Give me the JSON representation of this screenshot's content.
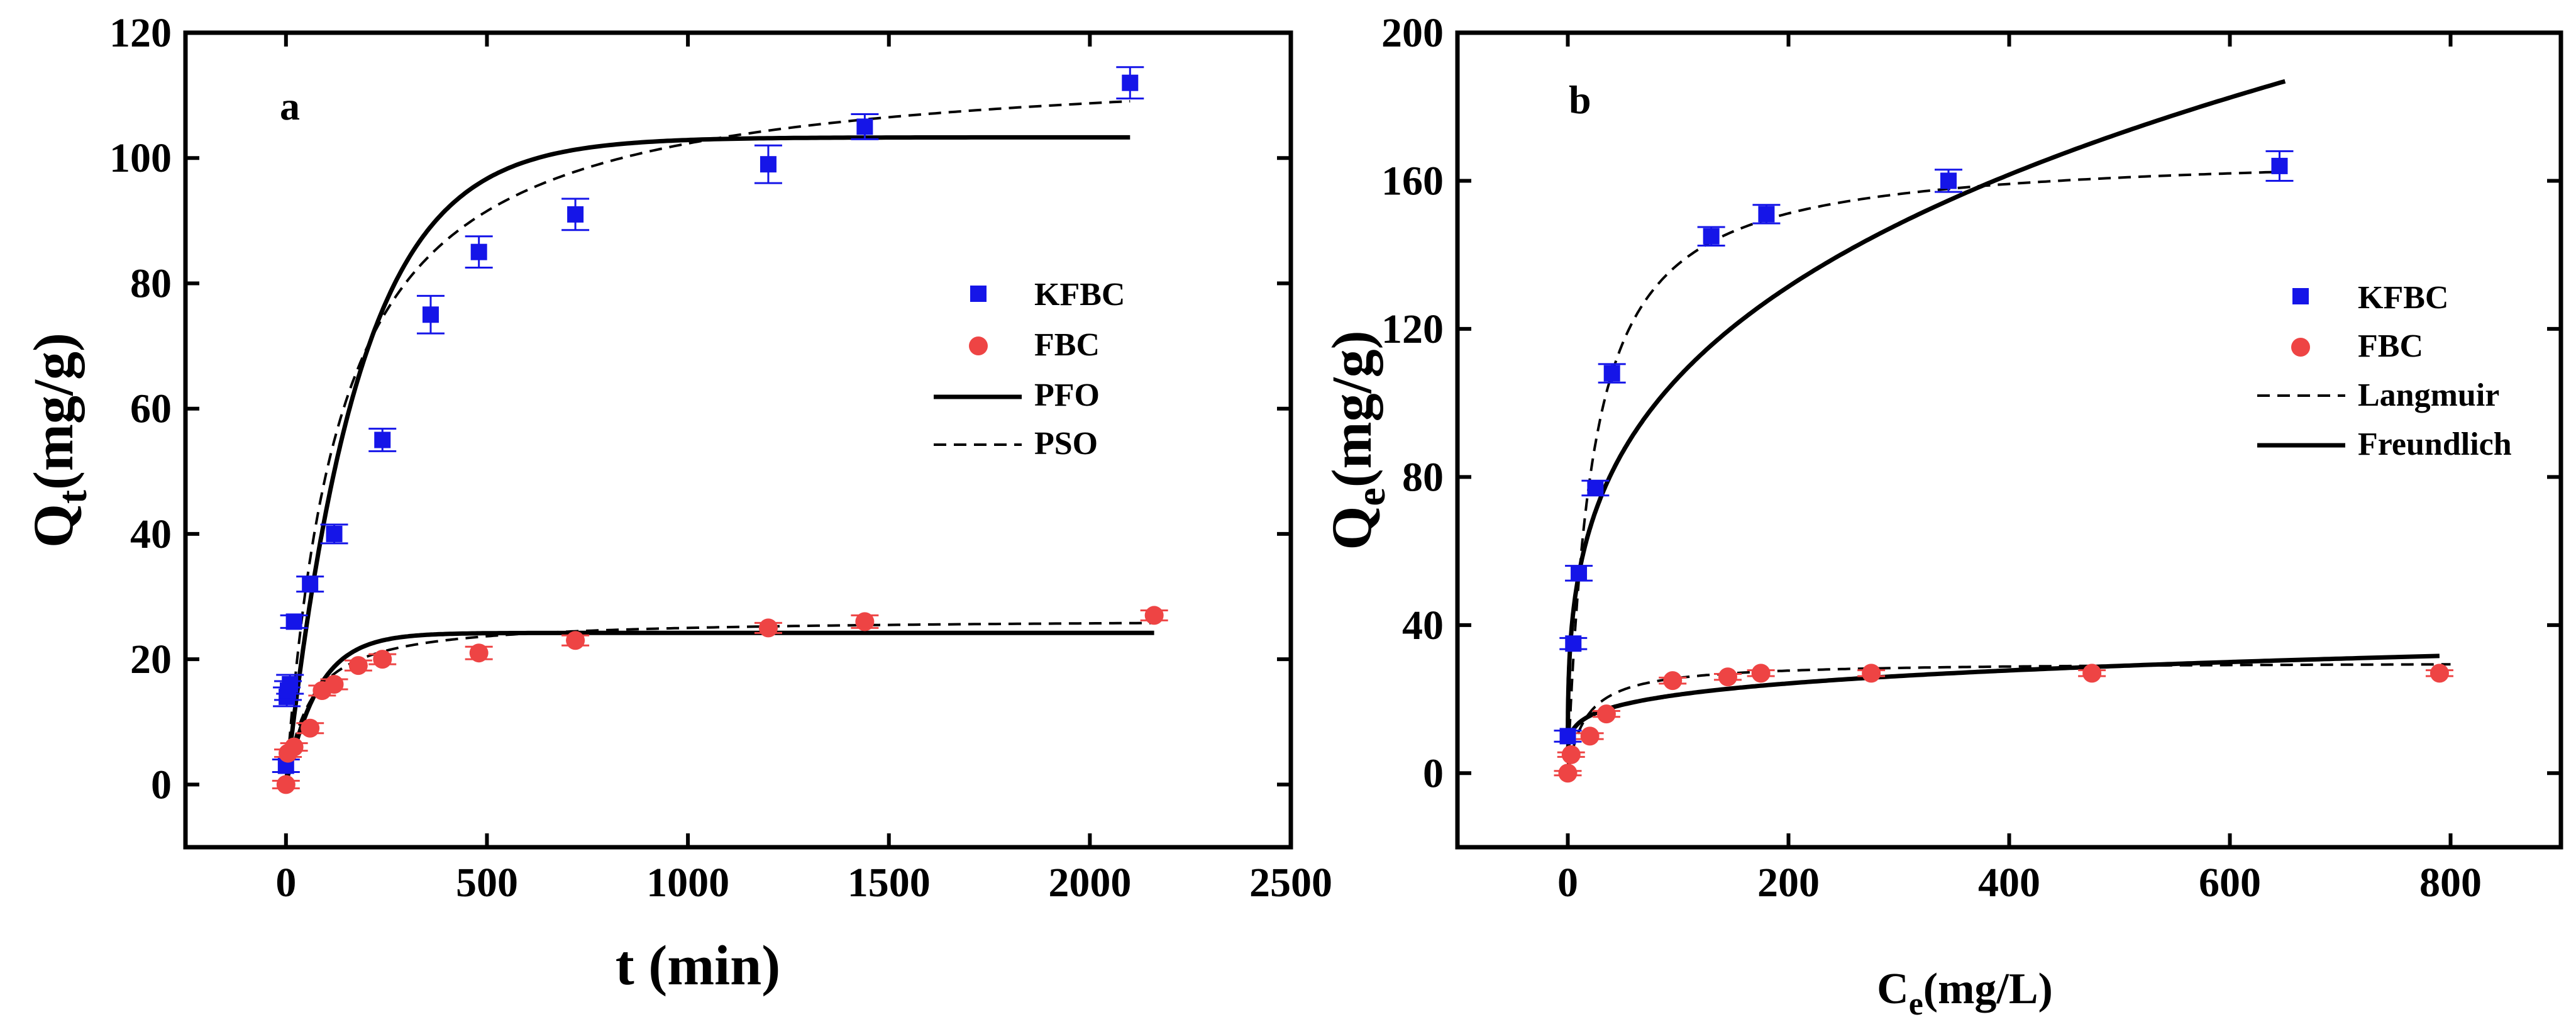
{
  "colors": {
    "kfbc": "#1515e8",
    "fbc": "#ee4444",
    "line": "#000000"
  },
  "chart_data": [
    {
      "type": "scatter",
      "panel_label": "a",
      "xlabel": "t (min)",
      "ylabel": {
        "main": "Q",
        "sub": "t",
        "rest": "(mg/g)"
      },
      "xlim": [
        -250,
        2500
      ],
      "ylim": [
        -10,
        120
      ],
      "xticks": [
        "0",
        "500",
        "1000",
        "1500",
        "2000",
        "2500"
      ],
      "yticks": [
        "0",
        "20",
        "40",
        "60",
        "80",
        "100",
        "120"
      ],
      "legend": {
        "position": "right-middle",
        "entries": [
          "KFBC",
          "FBC",
          "PFO",
          "PSO"
        ]
      },
      "series": [
        {
          "name": "KFBC",
          "marker": "square",
          "color": "#1515e8",
          "points": [
            {
              "x": 0,
              "y": 3,
              "err": 1.0
            },
            {
              "x": 2,
              "y": 14,
              "err": 1.5
            },
            {
              "x": 5,
              "y": 15,
              "err": 1.5
            },
            {
              "x": 10,
              "y": 16,
              "err": 1.5
            },
            {
              "x": 20,
              "y": 26,
              "err": 1.0
            },
            {
              "x": 60,
              "y": 32,
              "err": 1.2
            },
            {
              "x": 120,
              "y": 40,
              "err": 1.5
            },
            {
              "x": 240,
              "y": 55,
              "err": 1.8
            },
            {
              "x": 360,
              "y": 75,
              "err": 3.0
            },
            {
              "x": 480,
              "y": 85,
              "err": 2.5
            },
            {
              "x": 720,
              "y": 91,
              "err": 2.5
            },
            {
              "x": 1200,
              "y": 99,
              "err": 3.0
            },
            {
              "x": 1440,
              "y": 105,
              "err": 2.0
            },
            {
              "x": 2100,
              "y": 112,
              "err": 2.5
            }
          ]
        },
        {
          "name": "FBC",
          "marker": "circle",
          "color": "#ee4444",
          "points": [
            {
              "x": 0,
              "y": 0,
              "err": 0.6
            },
            {
              "x": 5,
              "y": 5,
              "err": 0.6
            },
            {
              "x": 20,
              "y": 6,
              "err": 0.6
            },
            {
              "x": 60,
              "y": 9,
              "err": 0.8
            },
            {
              "x": 90,
              "y": 15,
              "err": 0.8
            },
            {
              "x": 120,
              "y": 16,
              "err": 0.8
            },
            {
              "x": 180,
              "y": 19,
              "err": 0.8
            },
            {
              "x": 240,
              "y": 20,
              "err": 0.8
            },
            {
              "x": 480,
              "y": 21,
              "err": 1.0
            },
            {
              "x": 720,
              "y": 23,
              "err": 0.8
            },
            {
              "x": 1200,
              "y": 25,
              "err": 0.8
            },
            {
              "x": 1440,
              "y": 26,
              "err": 1.0
            },
            {
              "x": 2160,
              "y": 27,
              "err": 0.8
            }
          ]
        },
        {
          "name": "PFO",
          "model": "pfo",
          "style": "solid",
          "color": "#000000",
          "curves": [
            {
              "qe": 103.3,
              "k1": 0.0055,
              "xmax": 2100
            },
            {
              "qe": 24.2,
              "k1": 0.0125,
              "xmax": 2160
            }
          ]
        },
        {
          "name": "PSO",
          "model": "pso",
          "style": "dashed",
          "color": "#000000",
          "curves": [
            {
              "qe": 116,
              "k2": 6.45e-05,
              "xmax": 2100
            },
            {
              "qe": 26.5,
              "k2": 0.00063,
              "xmax": 2160
            }
          ]
        }
      ]
    },
    {
      "type": "scatter",
      "panel_label": "b",
      "xlabel": {
        "main": "C",
        "sub": "e",
        "rest": "(mg/L)"
      },
      "ylabel": {
        "main": "Q",
        "sub": "e",
        "rest": "(mg/g)"
      },
      "xlim": [
        -100,
        900
      ],
      "ylim": [
        -20,
        200
      ],
      "xticks": [
        "0",
        "200",
        "400",
        "600",
        "800"
      ],
      "yticks": [
        "0",
        "40",
        "80",
        "120",
        "160",
        "200"
      ],
      "legend": {
        "position": "right-middle",
        "entries": [
          "KFBC",
          "FBC",
          "Langmuir",
          "Freundlich"
        ]
      },
      "series": [
        {
          "name": "KFBC",
          "marker": "square",
          "color": "#1515e8",
          "points": [
            {
              "x": 0,
              "y": 10,
              "err": 1.5
            },
            {
              "x": 5,
              "y": 35,
              "err": 1.5
            },
            {
              "x": 10,
              "y": 54,
              "err": 2.0
            },
            {
              "x": 25,
              "y": 77,
              "err": 2.0
            },
            {
              "x": 40,
              "y": 108,
              "err": 2.5
            },
            {
              "x": 130,
              "y": 145,
              "err": 2.5
            },
            {
              "x": 180,
              "y": 151,
              "err": 2.5
            },
            {
              "x": 345,
              "y": 160,
              "err": 3.0
            },
            {
              "x": 645,
              "y": 164,
              "err": 4.0
            }
          ]
        },
        {
          "name": "FBC",
          "marker": "circle",
          "color": "#ee4444",
          "points": [
            {
              "x": 0,
              "y": 0,
              "err": 0.6
            },
            {
              "x": 3,
              "y": 5,
              "err": 0.6
            },
            {
              "x": 20,
              "y": 10,
              "err": 0.8
            },
            {
              "x": 35,
              "y": 16,
              "err": 0.8
            },
            {
              "x": 95,
              "y": 25,
              "err": 0.8
            },
            {
              "x": 145,
              "y": 26,
              "err": 0.8
            },
            {
              "x": 175,
              "y": 27,
              "err": 0.8
            },
            {
              "x": 275,
              "y": 27,
              "err": 0.8
            },
            {
              "x": 475,
              "y": 27,
              "err": 0.8
            },
            {
              "x": 790,
              "y": 27,
              "err": 0.8
            }
          ]
        },
        {
          "name": "Langmuir",
          "model": "langmuir",
          "style": "dashed",
          "color": "#000000",
          "curves": [
            {
              "qm": 168,
              "kl": 0.045,
              "xmax": 650
            },
            {
              "qm": 30,
              "kl": 0.06,
              "xmax": 800
            }
          ]
        },
        {
          "name": "Freundlich",
          "model": "freundlich",
          "style": "solid",
          "color": "#000000",
          "curves": [
            {
              "kf": 27,
              "n": 0.2987,
              "xmax": 650
            },
            {
              "kf": 8.65,
              "n": 0.1945,
              "xmax": 790
            }
          ]
        }
      ]
    }
  ]
}
